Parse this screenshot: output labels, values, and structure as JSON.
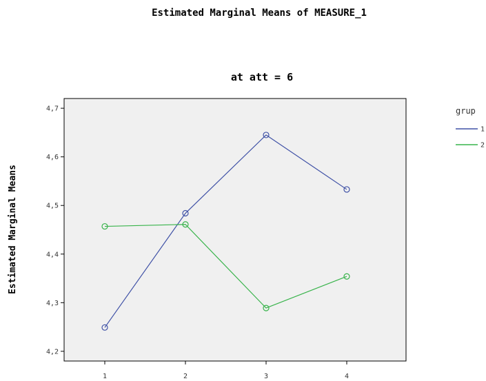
{
  "chart_data": {
    "type": "line",
    "title": "Estimated Marginal Means of MEASURE_1",
    "subtitle": "at att = 6",
    "xlabel": "",
    "ylabel": "Estimated Marginal Means",
    "categories": [
      "1",
      "2",
      "3",
      "4"
    ],
    "ylim": [
      4.18,
      4.72
    ],
    "yticks": [
      4.2,
      4.3,
      4.4,
      4.5,
      4.6,
      4.7
    ],
    "ytick_labels": [
      "4,2",
      "4,3",
      "4,4",
      "4,5",
      "4,6",
      "4,7"
    ],
    "legend_title": "grup",
    "legend_position": "right",
    "grid": false,
    "plot_background": "#f0f0f0",
    "series": [
      {
        "name": "1",
        "color": "#3f51a6",
        "marker": "circle",
        "values": [
          4.249,
          4.484,
          4.645,
          4.533
        ]
      },
      {
        "name": "2",
        "color": "#37b34a",
        "marker": "circle",
        "values": [
          4.457,
          4.461,
          4.289,
          4.354
        ]
      }
    ]
  }
}
